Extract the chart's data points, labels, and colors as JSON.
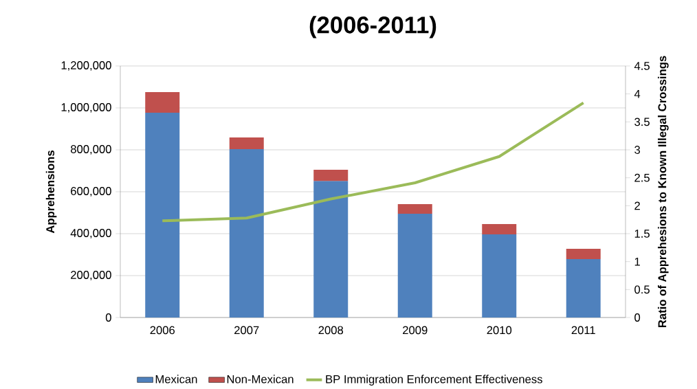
{
  "chart_data": {
    "type": "bar",
    "title": "(2006-2011)",
    "ylabel": "Apprehensions",
    "y2label": "Ratio of Apprehesions to Known Illegal Crossings",
    "categories": [
      "2006",
      "2007",
      "2008",
      "2009",
      "2010",
      "2011"
    ],
    "stacked": true,
    "series": [
      {
        "name": "Mexican",
        "color": "#4f81bd",
        "values": [
          977000,
          803000,
          652000,
          495000,
          397000,
          279000
        ]
      },
      {
        "name": "Non-Mexican",
        "color": "#c0504d",
        "values": [
          98000,
          56000,
          53000,
          46000,
          49000,
          49000
        ]
      },
      {
        "name": "BP Immigration Enforcement Effectiveness",
        "type": "line",
        "axis": "y2",
        "color": "#9bbb59",
        "values": [
          1.73,
          1.78,
          2.12,
          2.41,
          2.88,
          3.84
        ]
      }
    ],
    "ylim": [
      0,
      1200000
    ],
    "yticks": [
      {
        "value": 0,
        "label": "0"
      },
      {
        "value": 200000,
        "label": "200,000"
      },
      {
        "value": 400000,
        "label": "400,000"
      },
      {
        "value": 600000,
        "label": "600,000"
      },
      {
        "value": 800000,
        "label": "800,000"
      },
      {
        "value": 1000000,
        "label": "1,000,000"
      },
      {
        "value": 1200000,
        "label": "1,200,000"
      }
    ],
    "y2lim": [
      0,
      4.5
    ],
    "y2ticks": [
      0,
      0.5,
      1,
      1.5,
      2,
      2.5,
      3,
      3.5,
      4,
      4.5
    ],
    "grid": "y",
    "legend": "bottom"
  }
}
